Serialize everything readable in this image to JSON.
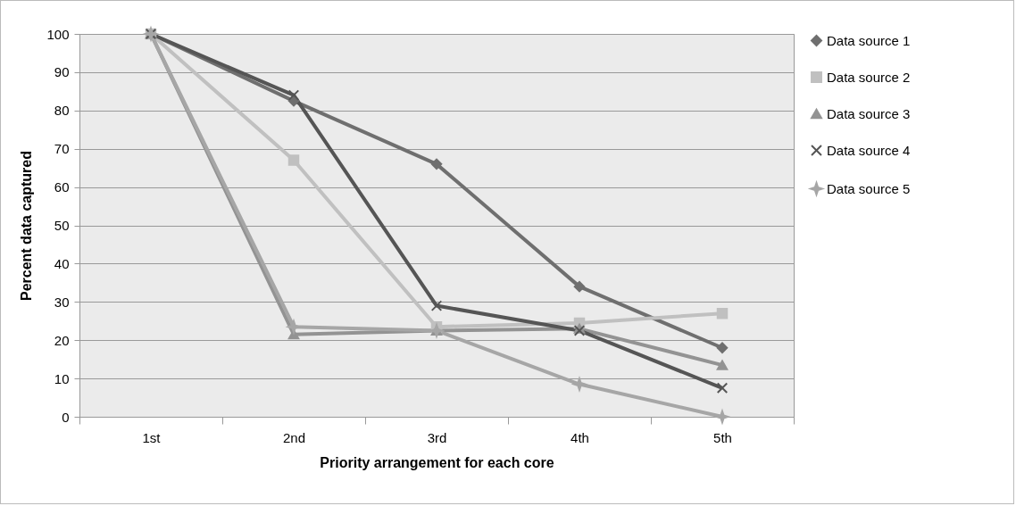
{
  "chart_data": {
    "type": "line",
    "xlabel": "Priority arrangement for each core",
    "ylabel": "Percent data captured",
    "categories": [
      "1st",
      "2nd",
      "3rd",
      "4th",
      "5th"
    ],
    "ylim": [
      0,
      100
    ],
    "yticks": [
      0,
      10,
      20,
      30,
      40,
      50,
      60,
      70,
      80,
      90,
      100
    ],
    "grid": "y",
    "legend": "right",
    "series": [
      {
        "name": "Data source 1",
        "color": "#6f6f6f",
        "marker": "diamond",
        "values": [
          100,
          82.5,
          66,
          34,
          18
        ]
      },
      {
        "name": "Data source 2",
        "color": "#c0c0c0",
        "marker": "square",
        "values": [
          100,
          67,
          23.5,
          24.5,
          27
        ]
      },
      {
        "name": "Data source 3",
        "color": "#939393",
        "marker": "triangle",
        "values": [
          100,
          21.5,
          22.5,
          23,
          13.5
        ]
      },
      {
        "name": "Data source 4",
        "color": "#555555",
        "marker": "cross",
        "values": [
          100,
          84,
          29,
          22.5,
          7.5
        ]
      },
      {
        "name": "Data source 5",
        "color": "#a6a6a6",
        "marker": "star",
        "values": [
          100,
          23.5,
          22.5,
          8.5,
          0
        ]
      }
    ]
  }
}
